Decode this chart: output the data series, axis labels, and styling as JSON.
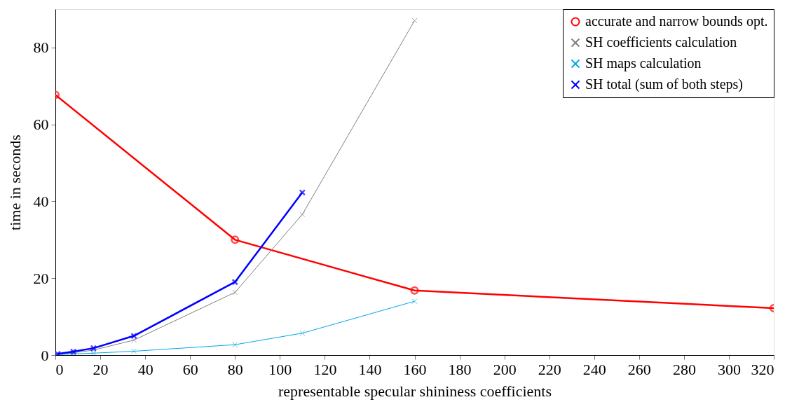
{
  "chart_data": {
    "type": "line",
    "xlabel": "representable specular shininess coefficients",
    "ylabel": "time in seconds",
    "xlim": [
      0,
      320
    ],
    "xticks": [
      0,
      20,
      40,
      60,
      80,
      100,
      120,
      140,
      160,
      180,
      200,
      220,
      240,
      260,
      280,
      300,
      320
    ],
    "ylim": [
      0,
      90
    ],
    "yticks": [
      0,
      20,
      40,
      60,
      80
    ],
    "grid": false,
    "legend": "top right",
    "series": [
      {
        "name": "accurate and narrow bounds opt.",
        "color": "#ff0000",
        "marker": "circle",
        "x": [
          0,
          80,
          160,
          320
        ],
        "values": [
          67.7,
          30,
          16.8,
          12.2
        ]
      },
      {
        "name": "SH coefficients calculation",
        "color": "#808080",
        "marker": "cross",
        "x": [
          1,
          8,
          17,
          35,
          80,
          110,
          160
        ],
        "values": [
          0.2,
          0.6,
          1.3,
          3.9,
          16.3,
          36.6,
          87
        ]
      },
      {
        "name": "SH maps calculation",
        "color": "#00a8e8",
        "marker": "cross",
        "x": [
          1,
          8,
          17,
          35,
          80,
          110,
          160
        ],
        "values": [
          0.1,
          0.3,
          0.5,
          1.0,
          2.7,
          5.7,
          14
        ]
      },
      {
        "name": "SH total (sum of both steps)",
        "color": "#0000ff",
        "marker": "cross",
        "x": [
          1,
          8,
          17,
          35,
          80,
          110
        ],
        "values": [
          0.3,
          0.9,
          1.8,
          5.0,
          19.0,
          42.3
        ]
      }
    ]
  }
}
